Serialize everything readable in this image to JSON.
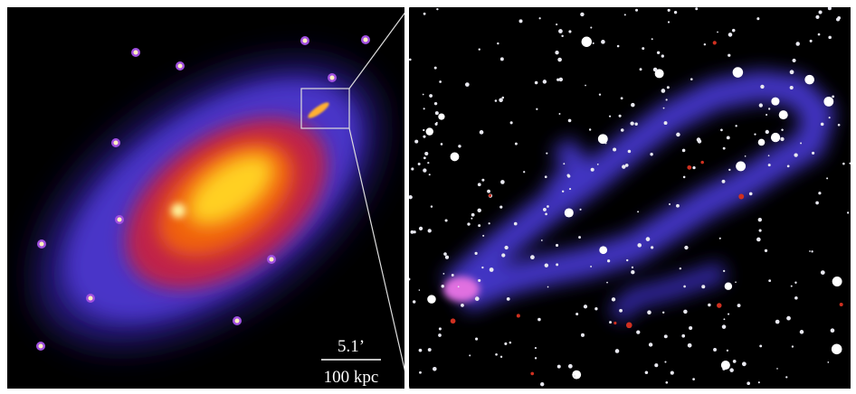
{
  "scale_bar": {
    "angle": "5.1’",
    "distance": "100 kpc"
  }
}
